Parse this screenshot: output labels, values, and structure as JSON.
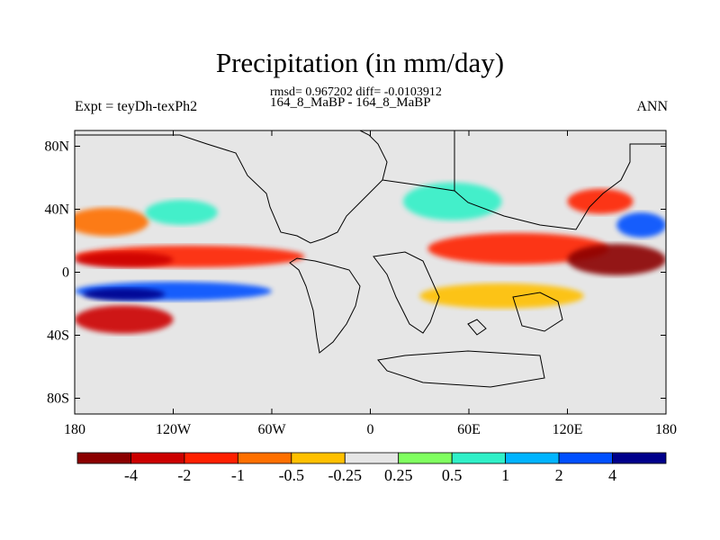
{
  "chart_data": {
    "type": "heatmap",
    "title": "Precipitation (in mm/day)",
    "stats_line": "rmsd= 0.967202 diff= -0.0103912",
    "subtitle": "164_8_MaBP - 164_8_MaBP",
    "left_label": "Expt = teyDh-texPh2",
    "right_label": "ANN",
    "xlim": [
      -180,
      180
    ],
    "ylim": [
      -90,
      90
    ],
    "x_ticks": [
      {
        "value": -180,
        "label": "180"
      },
      {
        "value": -120,
        "label": "120W"
      },
      {
        "value": -60,
        "label": "60W"
      },
      {
        "value": 0,
        "label": "0"
      },
      {
        "value": 60,
        "label": "60E"
      },
      {
        "value": 120,
        "label": "120E"
      },
      {
        "value": 180,
        "label": "180"
      }
    ],
    "y_ticks": [
      {
        "value": 80,
        "label": "80N"
      },
      {
        "value": 40,
        "label": "40N"
      },
      {
        "value": 0,
        "label": "0"
      },
      {
        "value": -40,
        "label": "40S"
      },
      {
        "value": -80,
        "label": "80S"
      }
    ],
    "colorbar": {
      "colors": [
        "#8b0000",
        "#cc0000",
        "#ff2000",
        "#ff7000",
        "#ffc000",
        "#e6e6e6",
        "#80ff60",
        "#30f0c8",
        "#00b4ff",
        "#0050ff",
        "#00008b"
      ],
      "levels": [
        "-4",
        "-2",
        "-1",
        "-0.5",
        "-0.25",
        "0.25",
        "0.5",
        "1",
        "2",
        "4"
      ]
    },
    "anomaly_regions": [
      {
        "lon": -160,
        "lat": 32,
        "rlon": 25,
        "rlat": 9,
        "level": 3
      },
      {
        "lon": -115,
        "lat": 38,
        "rlon": 22,
        "rlat": 8,
        "level": 7
      },
      {
        "lon": -110,
        "lat": 10,
        "rlon": 70,
        "rlat": 7,
        "level": 2
      },
      {
        "lon": -150,
        "lat": 8,
        "rlon": 30,
        "rlat": 5,
        "level": 1
      },
      {
        "lon": -120,
        "lat": -12,
        "rlon": 60,
        "rlat": 6,
        "level": 9
      },
      {
        "lon": -150,
        "lat": -14,
        "rlon": 25,
        "rlat": 4,
        "level": 10
      },
      {
        "lon": -150,
        "lat": -30,
        "rlon": 30,
        "rlat": 9,
        "level": 1
      },
      {
        "lon": 90,
        "lat": 15,
        "rlon": 55,
        "rlat": 10,
        "level": 2
      },
      {
        "lon": 150,
        "lat": 8,
        "rlon": 30,
        "rlat": 10,
        "level": 0
      },
      {
        "lon": 165,
        "lat": 30,
        "rlon": 15,
        "rlat": 8,
        "level": 9
      },
      {
        "lon": 50,
        "lat": 45,
        "rlon": 30,
        "rlat": 12,
        "level": 7
      },
      {
        "lon": 140,
        "lat": 45,
        "rlon": 20,
        "rlat": 8,
        "level": 2
      },
      {
        "lon": 80,
        "lat": -15,
        "rlon": 50,
        "rlat": 8,
        "level": 4
      }
    ]
  }
}
